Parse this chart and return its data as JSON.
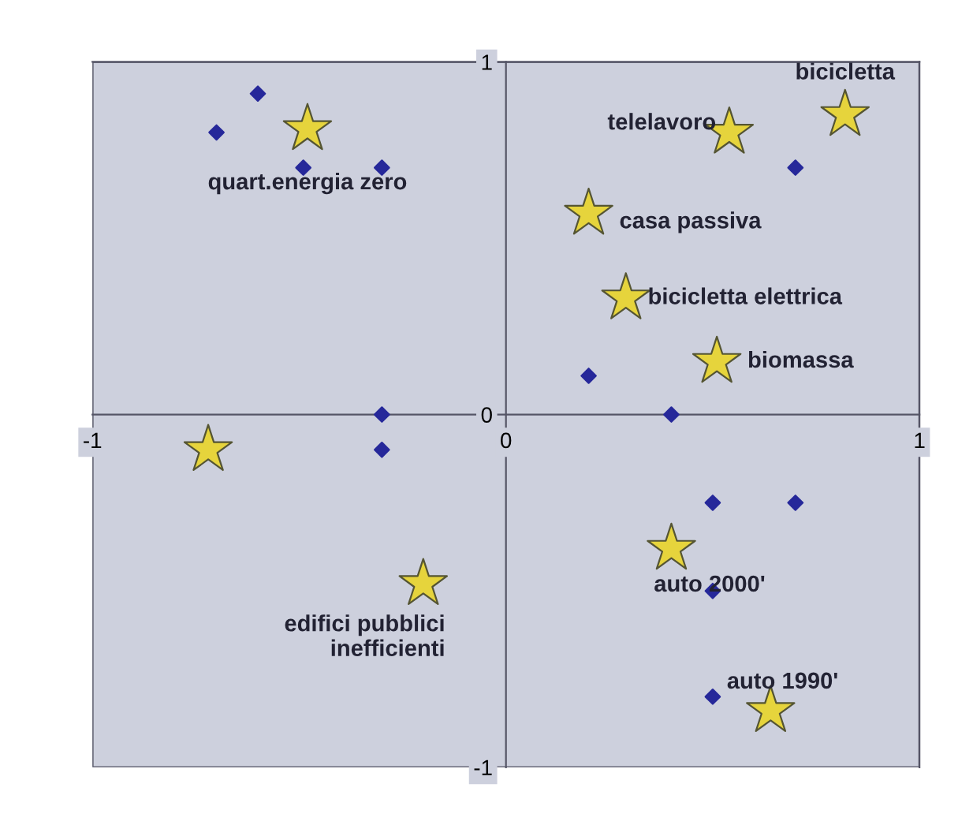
{
  "chart_data": {
    "type": "scatter",
    "xlim": [
      -1,
      1
    ],
    "ylim": [
      -1,
      1
    ],
    "xticks": [
      {
        "value": -1,
        "label": "-1"
      },
      0,
      1
    ],
    "yticks": [
      {
        "value": -1,
        "label": "-1"
      },
      0,
      1
    ],
    "grid": false,
    "series": [
      {
        "marker": "diamond",
        "color": "#26289a",
        "x": [
          -0.7,
          -0.6,
          -0.49,
          -0.3,
          -0.3,
          -0.3,
          0.7,
          0.2,
          0.4,
          0.5,
          0.7,
          0.5,
          0.5
        ],
        "values": [
          0.8,
          0.91,
          0.7,
          0.7,
          0.0,
          -0.1,
          0.7,
          0.11,
          0.0,
          -0.25,
          -0.25,
          -0.5,
          -0.8
        ]
      },
      {
        "marker": "star",
        "color": "#e6d43c",
        "x": [
          -0.48,
          0.54,
          0.82,
          0.2,
          0.29,
          0.51,
          -0.72,
          -0.2,
          0.4,
          0.64
        ],
        "values": [
          0.81,
          0.8,
          0.85,
          0.57,
          0.33,
          0.15,
          -0.1,
          -0.48,
          -0.38,
          -0.84
        ]
      }
    ],
    "annotations": [
      {
        "text": "quart.energia zero",
        "x": -0.48,
        "y": 0.81
      },
      {
        "text": "telelavoro",
        "x": 0.54,
        "y": 0.8
      },
      {
        "text": "bicicletta",
        "x": 0.82,
        "y": 0.85
      },
      {
        "text": "casa passiva",
        "x": 0.2,
        "y": 0.57
      },
      {
        "text": "bicicletta elettrica",
        "x": 0.29,
        "y": 0.33
      },
      {
        "text": "biomassa",
        "x": 0.51,
        "y": 0.15
      },
      {
        "text": "edifici pubblici\ninefficienti",
        "x": -0.2,
        "y": -0.48
      },
      {
        "text": "auto 2000'",
        "x": 0.4,
        "y": -0.38
      },
      {
        "text": "auto 1990'",
        "x": 0.64,
        "y": -0.84
      }
    ]
  }
}
